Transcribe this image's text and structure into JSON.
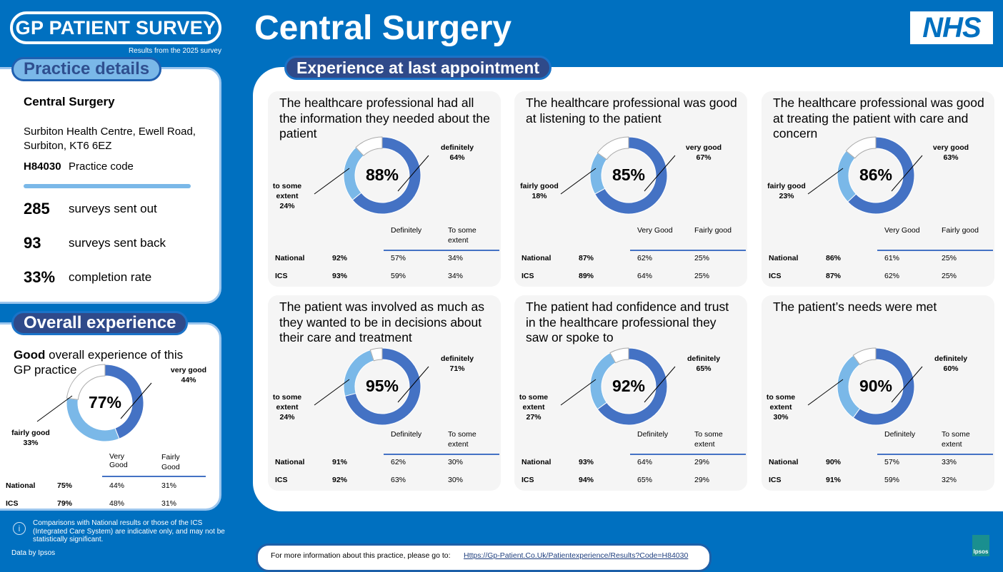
{
  "header": {
    "logo": "GP PATIENT SURVEY",
    "logo_sub": "Results from the 2025 survey",
    "title": "Central Surgery",
    "nhs_logo": "NHS"
  },
  "practice": {
    "section": "Practice details",
    "name": "Central Surgery",
    "address": "Surbiton Health Centre, Ewell Road, Surbiton, KT6 6EZ",
    "code": "H84030",
    "code_label": "Practice code",
    "stats": [
      {
        "value": "285",
        "label": "surveys sent out"
      },
      {
        "value": "93",
        "label": "surveys sent back"
      },
      {
        "value": "33%",
        "label": "completion rate"
      }
    ]
  },
  "overall": {
    "section": "Overall experience",
    "question_bold": "Good",
    "question_rest": " overall experience of this GP practice",
    "total": "77%",
    "dark_label": "very good",
    "dark_value": "44%",
    "light_label": "fairly good",
    "light_value": "33%",
    "dark": 44,
    "light": 33,
    "col1": "Very Good",
    "col2": "Fairly Good",
    "rows": [
      {
        "name": "National",
        "total": "75%",
        "c1": "44%",
        "c2": "31%"
      },
      {
        "name": "ICS",
        "total": "79%",
        "c1": "48%",
        "c2": "31%"
      }
    ]
  },
  "main": {
    "section": "Experience at last appointment",
    "cards": [
      {
        "title": "The healthcare professional had all the information they needed about the patient",
        "total": "88%",
        "dark": 64,
        "light": 24,
        "dark_label": "definitely",
        "dark_value": "64%",
        "light_label": "to some extent",
        "light_value": "24%",
        "col1": "Definitely",
        "col2": "To some extent",
        "rows": [
          {
            "name": "National",
            "total": "92%",
            "c1": "57%",
            "c2": "34%"
          },
          {
            "name": "ICS",
            "total": "93%",
            "c1": "59%",
            "c2": "34%"
          }
        ]
      },
      {
        "title": "The healthcare professional was good at listening to the patient",
        "total": "85%",
        "dark": 67,
        "light": 18,
        "dark_label": "very good",
        "dark_value": "67%",
        "light_label": "fairly good",
        "light_value": "18%",
        "col1": "Very Good",
        "col2": "Fairly good",
        "rows": [
          {
            "name": "National",
            "total": "87%",
            "c1": "62%",
            "c2": "25%"
          },
          {
            "name": "ICS",
            "total": "89%",
            "c1": "64%",
            "c2": "25%"
          }
        ]
      },
      {
        "title": "The healthcare professional was good at treating the patient with care and concern",
        "total": "86%",
        "dark": 63,
        "light": 23,
        "dark_label": "very good",
        "dark_value": "63%",
        "light_label": "fairly good",
        "light_value": "23%",
        "col1": "Very Good",
        "col2": "Fairly good",
        "rows": [
          {
            "name": "National",
            "total": "86%",
            "c1": "61%",
            "c2": "25%"
          },
          {
            "name": "ICS",
            "total": "87%",
            "c1": "62%",
            "c2": "25%"
          }
        ]
      },
      {
        "title": "The patient was involved as much as they wanted to be in decisions about their care and treatment",
        "total": "95%",
        "dark": 71,
        "light": 24,
        "dark_label": "definitely",
        "dark_value": "71%",
        "light_label": "to some extent",
        "light_value": "24%",
        "col1": "Definitely",
        "col2": "To some extent",
        "rows": [
          {
            "name": "National",
            "total": "91%",
            "c1": "62%",
            "c2": "30%"
          },
          {
            "name": "ICS",
            "total": "92%",
            "c1": "63%",
            "c2": "30%"
          }
        ]
      },
      {
        "title": "The patient had confidence and trust in the healthcare professional they saw or spoke to",
        "total": "92%",
        "dark": 65,
        "light": 27,
        "dark_label": "definitely",
        "dark_value": "65%",
        "light_label": "to some extent",
        "light_value": "27%",
        "col1": "Definitely",
        "col2": "To some extent",
        "rows": [
          {
            "name": "National",
            "total": "93%",
            "c1": "64%",
            "c2": "29%"
          },
          {
            "name": "ICS",
            "total": "94%",
            "c1": "65%",
            "c2": "29%"
          }
        ]
      },
      {
        "title": "The patient’s needs were met",
        "total": "90%",
        "dark": 60,
        "light": 30,
        "dark_label": "definitely",
        "dark_value": "60%",
        "light_label": "to some extent",
        "light_value": "30%",
        "col1": "Definitely",
        "col2": "To some extent",
        "rows": [
          {
            "name": "National",
            "total": "90%",
            "c1": "57%",
            "c2": "33%"
          },
          {
            "name": "ICS",
            "total": "91%",
            "c1": "59%",
            "c2": "32%"
          }
        ]
      }
    ]
  },
  "footer": {
    "disclaimer": "Comparisons with National results or those of the ICS (Integrated Care System) are indicative only, and may not be statistically significant.",
    "data_by": "Data by Ipsos",
    "more_info": "For more information about this practice, please go to:",
    "link": "Https://Gp-Patient.Co.Uk/Patientexperience/Results?Code=H84030",
    "ipsos": "Ipsos"
  },
  "colors": {
    "background": "#0070c0",
    "dark_segment": "#4472c4",
    "light_segment": "#7ab8e8"
  }
}
